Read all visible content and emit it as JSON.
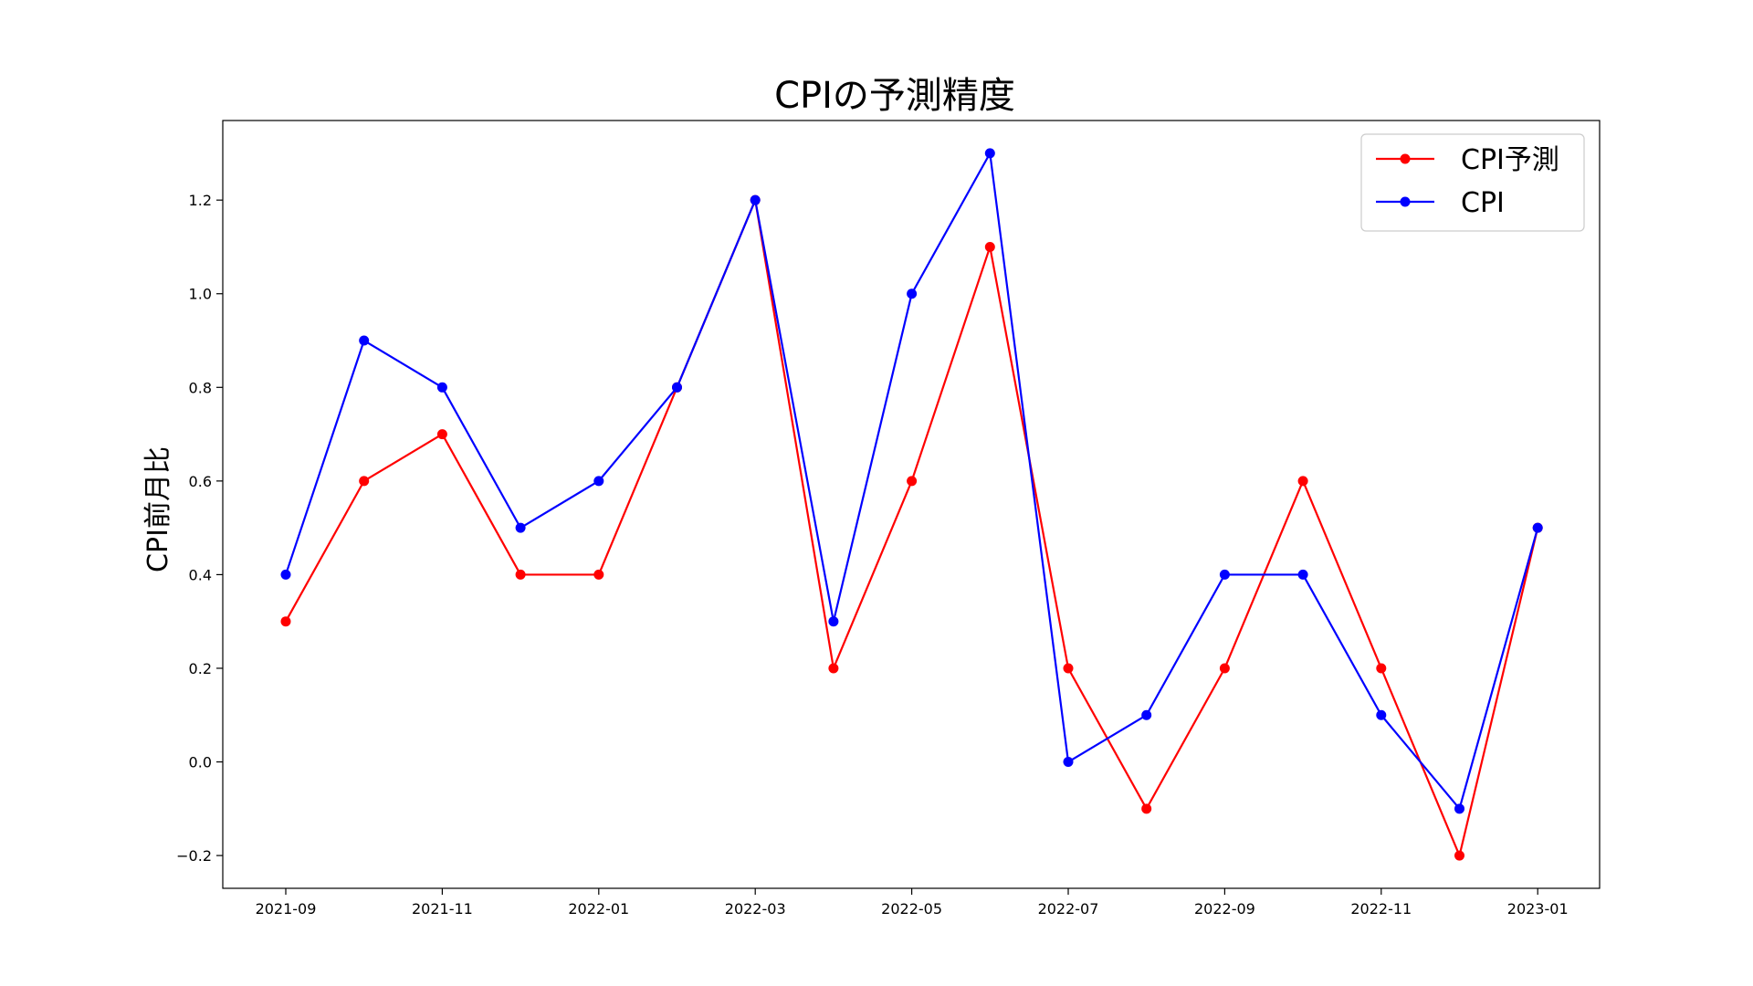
{
  "chart_data": {
    "type": "line",
    "title": "CPIの予測精度",
    "xlabel": "",
    "ylabel": "CPI前月比",
    "x": [
      "2021-09",
      "2021-10",
      "2021-11",
      "2021-12",
      "2022-01",
      "2022-02",
      "2022-03",
      "2022-04",
      "2022-05",
      "2022-06",
      "2022-07",
      "2022-08",
      "2022-09",
      "2022-10",
      "2022-11",
      "2022-12",
      "2023-01"
    ],
    "x_tick_labels": [
      "2021-09",
      "2021-11",
      "2022-01",
      "2022-03",
      "2022-05",
      "2022-07",
      "2022-09",
      "2022-11",
      "2023-01"
    ],
    "y_ticks": [
      -0.2,
      0.0,
      0.2,
      0.4,
      0.6,
      0.8,
      1.0,
      1.2
    ],
    "y_tick_labels": [
      "−0.2",
      "0.0",
      "0.2",
      "0.4",
      "0.6",
      "0.8",
      "1.0",
      "1.2"
    ],
    "ylim": [
      -0.27,
      1.37
    ],
    "grid": false,
    "legend_position": "top-right",
    "series": [
      {
        "name": "CPI予測",
        "color": "#ff0000",
        "values": [
          0.3,
          0.6,
          0.7,
          0.4,
          0.4,
          0.8,
          1.2,
          0.2,
          0.6,
          1.1,
          0.2,
          -0.1,
          0.2,
          0.6,
          0.2,
          -0.2,
          0.5
        ]
      },
      {
        "name": "CPI",
        "color": "#0000ff",
        "values": [
          0.4,
          0.9,
          0.8,
          0.5,
          0.6,
          0.8,
          1.2,
          0.3,
          1.0,
          1.3,
          0.0,
          0.1,
          0.4,
          0.4,
          0.1,
          -0.1,
          0.5
        ]
      }
    ]
  }
}
